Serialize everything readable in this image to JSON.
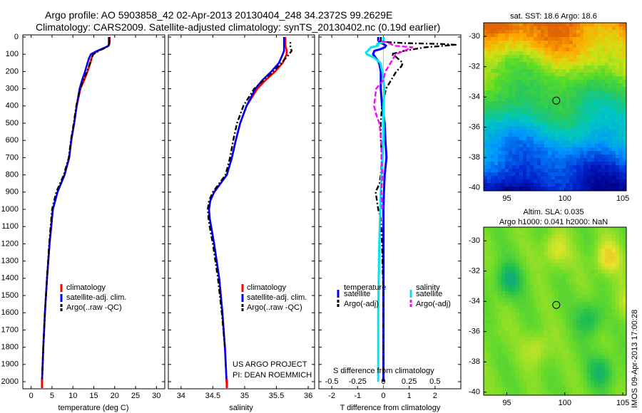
{
  "header": {
    "line1": "Argo profile: AO 5903858_42 02-Apr-2013 20130404_248 34.2372S 99.2629E",
    "line2": "Climatology: CARS2009. Satellite-adjusted climatology: synTS_20130402.nc (0.19d earlier)"
  },
  "side_label": "IMOS 09-Apr-2013 17:00:28",
  "depth_ticks": [
    "0",
    "100",
    "200",
    "300",
    "400",
    "500",
    "600",
    "700",
    "800",
    "900",
    "1000",
    "1100",
    "1200",
    "1300",
    "1400",
    "1500",
    "1600",
    "1700",
    "1800",
    "1900",
    "2000"
  ],
  "colors": {
    "climatology": "#ff0000",
    "satellite": "#0000ff",
    "argo": "#000000",
    "sal_sat": "#00e5ee",
    "sal_argo": "#ff00ff"
  },
  "chart_data": [
    {
      "type": "line",
      "name": "temperature",
      "xlabel": "temperature (deg C)",
      "xticks": [
        "0",
        "5",
        "10",
        "15",
        "20",
        "25",
        "30"
      ],
      "xlim": [
        -2,
        32
      ],
      "ylim": [
        0,
        2050
      ],
      "legend": [
        "climatology",
        "satellite-adj. clim.",
        "Argo(..raw -QC)"
      ],
      "series": [
        {
          "name": "climatology",
          "depth": [
            2000,
            1800,
            1600,
            1400,
            1200,
            1000,
            900,
            800,
            700,
            600,
            500,
            400,
            300,
            250,
            200,
            150,
            120,
            100,
            80,
            60,
            50,
            40,
            30,
            10,
            0
          ],
          "values": [
            2.6,
            2.9,
            3.3,
            3.8,
            4.4,
            5.2,
            6.3,
            8.0,
            9.1,
            9.6,
            10.3,
            10.9,
            11.8,
            12.7,
            13.5,
            14.2,
            14.5,
            14.8,
            16.0,
            17.8,
            18.6,
            18.7,
            18.8,
            18.8,
            18.8
          ]
        },
        {
          "name": "satellite",
          "depth": [
            2000,
            1800,
            1600,
            1400,
            1200,
            1000,
            900,
            800,
            700,
            600,
            500,
            400,
            300,
            250,
            200,
            150,
            120,
            100,
            80,
            60,
            50,
            40,
            30,
            10,
            0
          ],
          "values": [
            2.6,
            2.9,
            3.3,
            3.8,
            4.4,
            5.2,
            6.3,
            8.0,
            9.1,
            9.6,
            10.3,
            10.9,
            11.6,
            12.2,
            12.9,
            13.5,
            13.9,
            14.3,
            15.8,
            17.8,
            18.5,
            18.6,
            18.6,
            18.6,
            18.6
          ]
        },
        {
          "name": "argo",
          "depth": [
            2000,
            1800,
            1600,
            1400,
            1200,
            1000,
            900,
            800,
            700,
            600,
            500,
            400,
            300,
            250,
            200,
            150,
            120,
            100,
            80,
            60,
            50,
            40,
            30,
            10,
            0
          ],
          "values": [
            2.6,
            2.9,
            3.3,
            3.8,
            4.3,
            5.0,
            6.0,
            7.8,
            9.0,
            9.5,
            10.2,
            10.8,
            11.7,
            12.5,
            13.4,
            14.1,
            14.5,
            14.9,
            16.2,
            18.0,
            18.6,
            18.7,
            18.7,
            18.7,
            18.7
          ]
        }
      ]
    },
    {
      "type": "line",
      "name": "salinity",
      "xlabel": "salinity",
      "xticks": [
        "34",
        "34.5",
        "35",
        "35.5",
        "36"
      ],
      "xlim": [
        33.8,
        36.1
      ],
      "ylim": [
        0,
        2050
      ],
      "legend": [
        "climatology",
        "satellite-adj. clim.",
        "Argo(..raw -QC)"
      ],
      "project": [
        "US ARGO PROJECT",
        "PI: DEAN ROEMMICH"
      ],
      "series": [
        {
          "name": "climatology",
          "depth": [
            2030,
            1800,
            1600,
            1400,
            1200,
            1050,
            1000,
            950,
            900,
            850,
            800,
            700,
            600,
            500,
            400,
            300,
            250,
            200,
            150,
            100,
            80,
            60,
            50,
            40,
            30,
            0
          ],
          "values": [
            34.72,
            34.69,
            34.65,
            34.6,
            34.52,
            34.45,
            34.44,
            34.46,
            34.52,
            34.62,
            34.72,
            34.8,
            34.86,
            34.93,
            35.03,
            35.2,
            35.33,
            35.48,
            35.6,
            35.66,
            35.66,
            35.65,
            35.64,
            35.64,
            35.64,
            35.64
          ]
        },
        {
          "name": "satellite",
          "depth": [
            2030,
            1800,
            1600,
            1400,
            1200,
            1050,
            1000,
            950,
            900,
            850,
            800,
            700,
            600,
            500,
            400,
            300,
            250,
            200,
            150,
            100,
            80,
            60,
            50,
            40,
            30,
            0
          ],
          "values": [
            34.72,
            34.69,
            34.65,
            34.6,
            34.52,
            34.45,
            34.44,
            34.46,
            34.52,
            34.62,
            34.72,
            34.8,
            34.86,
            34.93,
            35.03,
            35.17,
            35.28,
            35.42,
            35.54,
            35.6,
            35.62,
            35.62,
            35.62,
            35.62,
            35.62,
            35.62
          ]
        },
        {
          "name": "argo",
          "depth": [
            1800,
            1600,
            1400,
            1200,
            1100,
            1050,
            1000,
            950,
            900,
            850,
            800,
            700,
            600,
            500,
            400,
            300,
            250,
            200,
            150,
            100,
            80,
            60,
            50,
            40,
            30
          ],
          "values": [
            34.69,
            34.64,
            34.58,
            34.5,
            34.45,
            34.43,
            34.42,
            34.44,
            34.5,
            34.6,
            34.7,
            34.77,
            34.82,
            34.88,
            34.98,
            35.15,
            35.3,
            35.45,
            35.58,
            35.7,
            35.74,
            35.72,
            35.72,
            35.72,
            35.72
          ]
        }
      ]
    },
    {
      "type": "line",
      "name": "difference",
      "xlabel": "T difference from climatology",
      "s_label": "S difference from climatology",
      "xticks": [
        "-2",
        "-1",
        "0",
        "1",
        "2"
      ],
      "s_ticks": [
        "-0.5",
        "-0.25",
        "0",
        "0.25",
        "0.5"
      ],
      "xlim": [
        -2.5,
        3.0
      ],
      "ylim": [
        0,
        2050
      ],
      "legend": {
        "col1_head": "temperature",
        "col2_head": "salinity",
        "sat": "satellite",
        "argo": "Argo(-adj)"
      },
      "series": [
        {
          "name": "temp satellite",
          "depth": [
            2000,
            1500,
            1200,
            1000,
            900,
            800,
            700,
            600,
            500,
            400,
            300,
            200,
            160,
            140,
            120,
            100,
            80,
            70,
            60,
            50,
            40,
            30,
            20,
            0
          ],
          "values": [
            0,
            0,
            0,
            0,
            0.02,
            0.05,
            0.12,
            0.08,
            0.05,
            -0.05,
            -0.1,
            -0.1,
            -0.15,
            -0.2,
            -0.3,
            -0.4,
            -0.35,
            -0.1,
            0.05,
            0.1,
            0.0,
            -0.15,
            -0.2,
            -0.2
          ]
        },
        {
          "name": "temp argo",
          "depth": [
            2000,
            1500,
            1200,
            1050,
            1000,
            950,
            900,
            850,
            800,
            700,
            600,
            500,
            400,
            300,
            250,
            200,
            170,
            150,
            130,
            110,
            100,
            80,
            60,
            50,
            45,
            40,
            35,
            30,
            25,
            0
          ],
          "values": [
            0,
            0,
            -0.05,
            -0.1,
            -0.2,
            -0.25,
            -0.3,
            -0.15,
            -0.1,
            -0.05,
            -0.1,
            -0.1,
            -0.05,
            0.1,
            0.3,
            0.5,
            0.7,
            0.75,
            0.6,
            0.45,
            0.3,
            0.8,
            1.6,
            2.4,
            2.8,
            2.2,
            0.8,
            0.2,
            -0.1,
            -0.1
          ]
        },
        {
          "name": "sal satellite",
          "depth": [
            2000,
            1600,
            1200,
            1000,
            800,
            600,
            400,
            300,
            200,
            150,
            120,
            100,
            90,
            80,
            60,
            50,
            40,
            30,
            0
          ],
          "values": [
            -0.05,
            -0.05,
            -0.04,
            -0.03,
            -0.02,
            0,
            0,
            0.01,
            -0.01,
            -0.03,
            -0.09,
            -0.16,
            -0.17,
            -0.15,
            -0.12,
            -0.05,
            -0.06,
            0,
            0
          ]
        },
        {
          "name": "sal argo",
          "depth": [
            1000,
            900,
            800,
            700,
            600,
            500,
            450,
            400,
            350,
            300,
            250,
            200,
            150,
            100,
            80,
            60,
            50,
            40,
            30,
            20
          ],
          "values": [
            -0.01,
            -0.02,
            -0.01,
            -0.02,
            -0.02,
            -0.04,
            -0.07,
            -0.09,
            -0.08,
            -0.07,
            0.0,
            0.02,
            0.07,
            0.12,
            0.2,
            0.28,
            0.1,
            0.07,
            0.03,
            -0.05
          ]
        }
      ]
    }
  ],
  "maps": {
    "sst": {
      "title": "sat. SST: 18.6 Argo: 18.6",
      "yticks": [
        "-30",
        "-32",
        "-34",
        "-36",
        "-38",
        "-40"
      ],
      "xticks": [
        "95",
        "100",
        "105"
      ],
      "argo_lon": 99.2629,
      "argo_lat": -34.2372
    },
    "sla": {
      "title1": "Altim. SLA: 0.035",
      "title2": "Argo h1000: 0.041 h2000: NaN",
      "yticks": [
        "-30",
        "-32",
        "-34",
        "-36",
        "-38",
        "-40"
      ],
      "xticks": [
        "95",
        "100",
        "105"
      ],
      "argo_lon": 99.2629,
      "argo_lat": -34.2372
    }
  }
}
